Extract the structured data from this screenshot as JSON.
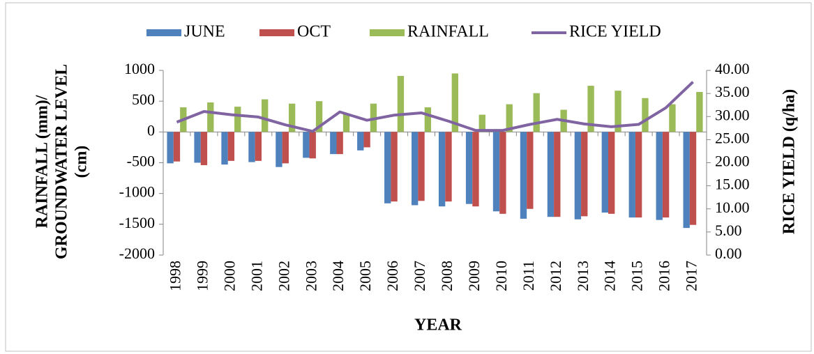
{
  "chart_data": {
    "type": "bar",
    "categories": [
      "1998",
      "1999",
      "2000",
      "2001",
      "2002",
      "2003",
      "2004",
      "2005",
      "2006",
      "2007",
      "2008",
      "2009",
      "2010",
      "2011",
      "2012",
      "2013",
      "2014",
      "2015",
      "2016",
      "2017"
    ],
    "series": [
      {
        "name": "JUNE",
        "color": "#4f81bd",
        "values": [
          -510,
          -500,
          -530,
          -490,
          -570,
          -420,
          -360,
          -300,
          -1160,
          -1190,
          -1210,
          -1170,
          -1290,
          -1410,
          -1380,
          -1420,
          -1310,
          -1390,
          -1430,
          -1560
        ]
      },
      {
        "name": "OCT",
        "color": "#c0504d",
        "values": [
          -480,
          -540,
          -470,
          -470,
          -510,
          -430,
          -360,
          -250,
          -1130,
          -1120,
          -1130,
          -1210,
          -1330,
          -1250,
          -1380,
          -1370,
          -1330,
          -1390,
          -1390,
          -1510
        ]
      },
      {
        "name": "RAINFALL",
        "color": "#9bbb59",
        "values": [
          400,
          480,
          410,
          530,
          460,
          500,
          290,
          460,
          910,
          400,
          950,
          280,
          450,
          630,
          360,
          750,
          670,
          550,
          450,
          650
        ]
      },
      {
        "name": "RICE YIELD",
        "color": "#8064a2",
        "axis": "y2",
        "kind": "line",
        "values": [
          28.8,
          31.1,
          30.4,
          29.9,
          28.2,
          26.8,
          31.0,
          29.2,
          30.3,
          30.8,
          29.0,
          27.0,
          27.0,
          28.3,
          29.4,
          28.4,
          27.8,
          28.3,
          31.9,
          37.5
        ]
      }
    ],
    "xlabel": "YEAR",
    "ylabel": [
      "RAINFALL (mm)/",
      "GROUNDWATER LEVEL",
      "(cm)"
    ],
    "y2label": "RICE YIELD (q/ha)",
    "ylim": [
      -2000,
      1000
    ],
    "yticks": [
      -2000,
      -1500,
      -1000,
      -500,
      0,
      500,
      1000
    ],
    "y2lim": [
      0,
      40
    ],
    "y2ticks": [
      {
        "value": 0,
        "label": "0.00"
      },
      {
        "value": 5,
        "label": "5.00"
      },
      {
        "value": 10,
        "label": "10.00"
      },
      {
        "value": 15,
        "label": "15.00"
      },
      {
        "value": 20,
        "label": "20.00"
      },
      {
        "value": 25,
        "label": "25.00"
      },
      {
        "value": 30,
        "label": "30.00"
      },
      {
        "value": 35,
        "label": "35.00"
      },
      {
        "value": 40,
        "label": "40.00"
      }
    ],
    "legend": "top",
    "grid": false
  }
}
